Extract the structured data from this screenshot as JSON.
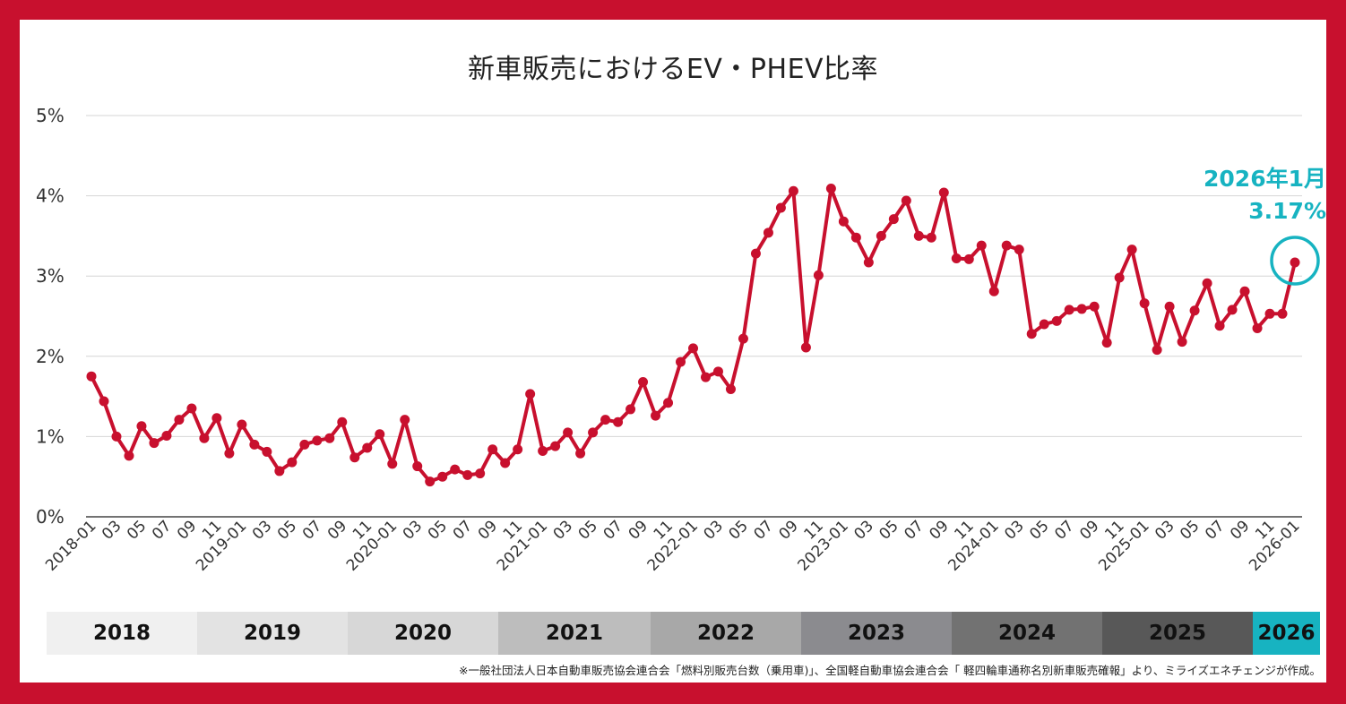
{
  "chart_data": {
    "type": "line",
    "title": "新車販売におけるEV・PHEV比率",
    "ylabel": "",
    "xlabel": "",
    "ylim": [
      0,
      5
    ],
    "yticks": [
      "0%",
      "1%",
      "2%",
      "3%",
      "4%",
      "5%"
    ],
    "grid": true,
    "series_color": "#c8102e",
    "x_tick_labels": [
      "2018-01",
      "03",
      "05",
      "07",
      "09",
      "11",
      "2019-01",
      "03",
      "05",
      "07",
      "09",
      "11",
      "2020-01",
      "03",
      "05",
      "07",
      "09",
      "11",
      "2021-01",
      "03",
      "05",
      "07",
      "09",
      "11",
      "2022-01",
      "03",
      "05",
      "07",
      "09",
      "11",
      "2023-01",
      "03",
      "05",
      "07",
      "09",
      "11",
      "2024-01",
      "03",
      "05",
      "07",
      "09",
      "11",
      "2025-01",
      "03",
      "05",
      "07",
      "09",
      "11",
      "2026-01"
    ],
    "values": [
      1.75,
      1.44,
      1.0,
      0.76,
      1.13,
      0.92,
      1.01,
      1.21,
      1.35,
      0.98,
      1.23,
      0.79,
      1.15,
      0.9,
      0.81,
      0.57,
      0.68,
      0.9,
      0.95,
      0.98,
      1.18,
      0.74,
      0.86,
      1.03,
      0.66,
      1.21,
      0.63,
      0.44,
      0.5,
      0.59,
      0.52,
      0.54,
      0.84,
      0.67,
      0.84,
      1.53,
      0.82,
      0.88,
      1.05,
      0.79,
      1.05,
      1.21,
      1.18,
      1.34,
      1.68,
      1.26,
      1.42,
      1.93,
      2.1,
      1.74,
      1.81,
      1.59,
      2.22,
      3.28,
      3.54,
      3.85,
      4.06,
      2.11,
      3.01,
      4.09,
      3.68,
      3.48,
      3.17,
      3.5,
      3.71,
      3.94,
      3.5,
      3.48,
      4.04,
      3.22,
      3.21,
      3.38,
      2.81,
      3.38,
      3.33,
      2.28,
      2.4,
      2.44,
      2.58,
      2.59,
      2.62,
      2.17,
      2.98,
      3.33,
      2.66,
      2.08,
      2.62,
      2.18,
      2.57,
      2.91,
      2.38,
      2.58,
      2.81,
      2.35,
      2.53,
      2.53,
      3.17
    ],
    "annotation": {
      "line1": "2026年1月",
      "line2": "3.17%",
      "color": "#17b3c1"
    }
  },
  "year_bands": [
    {
      "label": "2018",
      "color": "#f0f0f0"
    },
    {
      "label": "2019",
      "color": "#e3e3e3"
    },
    {
      "label": "2020",
      "color": "#d7d7d7"
    },
    {
      "label": "2021",
      "color": "#bdbdbd"
    },
    {
      "label": "2022",
      "color": "#a8a8a8"
    },
    {
      "label": "2023",
      "color": "#8b8b8f"
    },
    {
      "label": "2024",
      "color": "#727272"
    },
    {
      "label": "2025",
      "color": "#585858"
    },
    {
      "label": "2026",
      "color": "#17b3c1"
    }
  ],
  "footnote": "※一般社団法人日本自動車販売協会連合会「燃料別販売台数（乗用車)」、全国軽自動車協会連合会「 軽四輪車通称名別新車販売確報」より、ミライズエネチェンジが作成。"
}
